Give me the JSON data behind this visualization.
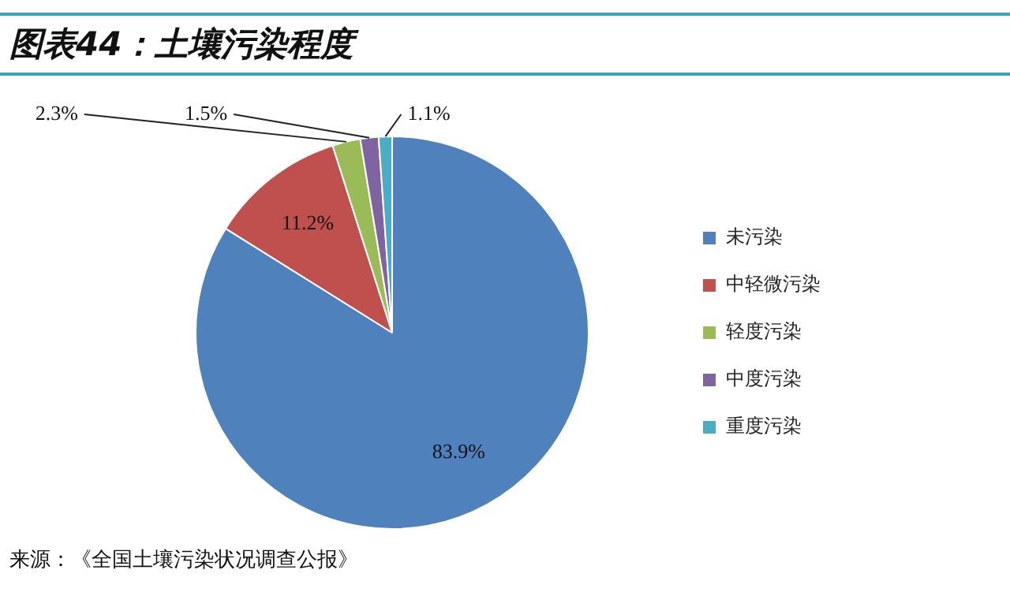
{
  "chart_data": {
    "type": "pie",
    "title": "图表44：土壤污染程度",
    "categories": [
      "未污染",
      "中轻微污染",
      "轻度污染",
      "中度污染",
      "重度污染"
    ],
    "values": [
      83.9,
      11.2,
      2.3,
      1.5,
      1.1
    ],
    "value_labels": [
      "83.9%",
      "11.2%",
      "2.3%",
      "1.5%",
      "1.1%"
    ],
    "colors": [
      "#4f81bd",
      "#c0504d",
      "#9bbb59",
      "#8064a2",
      "#4bacc6"
    ],
    "legend": "right",
    "annotations": [
      "来源：《全国土壤污染状况调查公报》"
    ]
  }
}
